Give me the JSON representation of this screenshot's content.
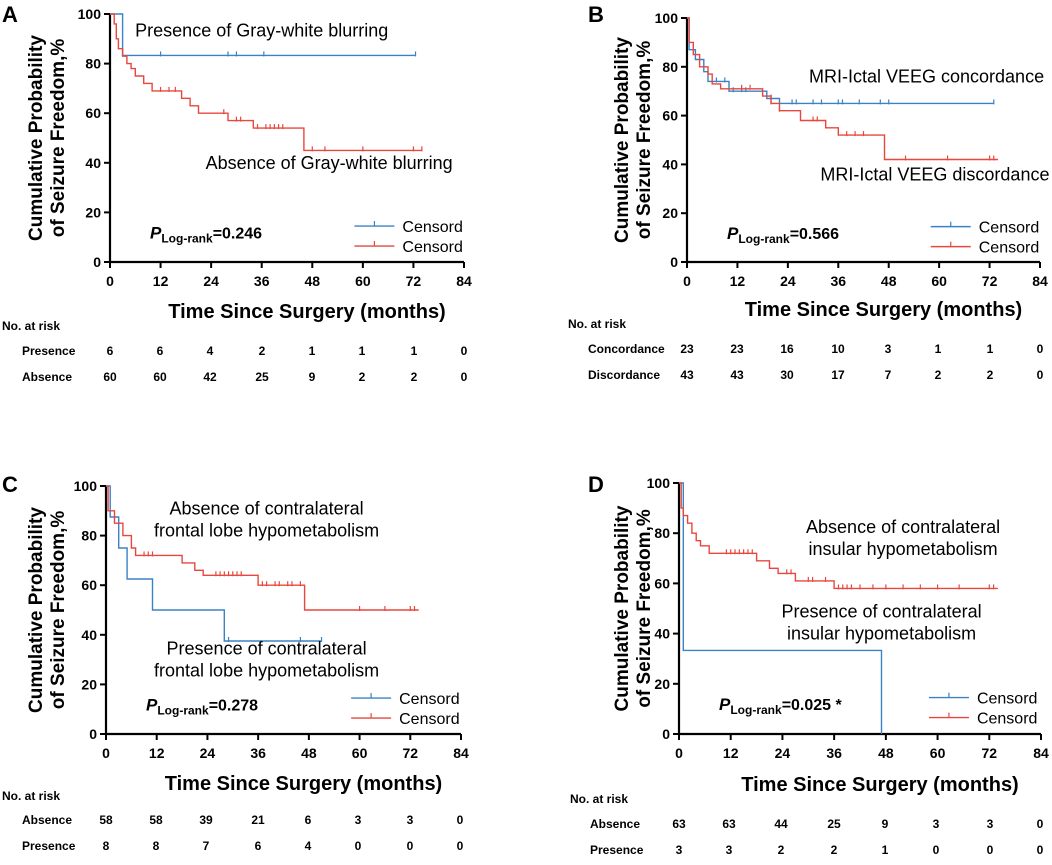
{
  "colors": {
    "blue": "#3b82c4",
    "red": "#e8473f",
    "axis": "#000000"
  },
  "chart_data": [
    {
      "panel_label": "A",
      "type": "line",
      "ylabel_lines": [
        "Cumulative Probability",
        "of Seizure Freedom,%"
      ],
      "xlabel": "Time Since Surgery (months)",
      "x_ticks": [
        0,
        12,
        24,
        36,
        48,
        60,
        72,
        84
      ],
      "y_ticks": [
        0,
        20,
        40,
        60,
        80,
        100
      ],
      "xlim": [
        0,
        84
      ],
      "ylim": [
        0,
        100
      ],
      "p_value": {
        "p": "P",
        "sub": "Log-rank",
        "value": "=0.246"
      },
      "legend": [
        "Censord",
        "Censord"
      ],
      "series": [
        {
          "name": "Presence of Gray-white blurring",
          "color": "blue",
          "steps": [
            [
              0,
              100
            ],
            [
              3,
              100
            ],
            [
              3,
              83.3
            ],
            [
              72.5,
              83.3
            ]
          ],
          "censors": [
            12,
            28,
            30,
            36.5,
            72.5
          ]
        },
        {
          "name": "Absence of Gray-white blurring",
          "color": "red",
          "steps": [
            [
              0,
              100
            ],
            [
              1,
              100
            ],
            [
              1,
              96
            ],
            [
              1.5,
              96
            ],
            [
              1.5,
              90
            ],
            [
              2,
              90
            ],
            [
              2,
              86
            ],
            [
              3,
              86
            ],
            [
              3,
              83
            ],
            [
              4,
              83
            ],
            [
              4,
              80
            ],
            [
              5,
              80
            ],
            [
              5,
              78
            ],
            [
              6,
              78
            ],
            [
              6,
              75
            ],
            [
              8,
              75
            ],
            [
              8,
              72
            ],
            [
              10,
              72
            ],
            [
              10,
              69
            ],
            [
              17,
              69
            ],
            [
              17,
              66
            ],
            [
              19,
              66
            ],
            [
              19,
              63
            ],
            [
              21,
              63
            ],
            [
              21,
              60
            ],
            [
              28,
              60
            ],
            [
              28,
              57
            ],
            [
              34,
              57
            ],
            [
              34,
              54
            ],
            [
              46,
              54
            ],
            [
              46,
              45
            ],
            [
              74,
              45
            ]
          ],
          "censors": [
            12,
            14,
            15.5,
            27,
            30,
            31,
            35,
            37,
            38,
            39,
            40,
            41,
            48,
            51,
            60,
            72,
            74
          ]
        }
      ],
      "annotations": [
        {
          "series": 0,
          "lines": [
            "Presence of Gray-white blurring"
          ],
          "x": 36,
          "y": 91,
          "anchor": "middle"
        },
        {
          "series": 1,
          "lines": [
            "Absence of Gray-white blurring"
          ],
          "x": 52,
          "y": 37.5,
          "anchor": "middle"
        }
      ],
      "risk_table": {
        "title": "No. at risk",
        "rows": [
          {
            "label": "Presence",
            "values": [
              "6",
              "6",
              "4",
              "2",
              "1",
              "1",
              "1",
              "0"
            ]
          },
          {
            "label": "Absence",
            "values": [
              "60",
              "60",
              "42",
              "25",
              "9",
              "2",
              "2",
              "0"
            ]
          }
        ]
      }
    },
    {
      "panel_label": "B",
      "type": "line",
      "ylabel_lines": [
        "Cumulative Probability",
        "of Seizure Freedom,%"
      ],
      "xlabel": "Time Since Surgery (months)",
      "x_ticks": [
        0,
        12,
        24,
        36,
        48,
        60,
        72,
        84
      ],
      "y_ticks": [
        0,
        20,
        40,
        60,
        80,
        100
      ],
      "xlim": [
        0,
        84
      ],
      "ylim": [
        0,
        100
      ],
      "p_value": {
        "p": "P",
        "sub": "Log-rank",
        "value": "=0.566"
      },
      "legend": [
        "Censord",
        "Censord"
      ],
      "series": [
        {
          "name": "MRI-Ictal VEEG concordance",
          "color": "blue",
          "steps": [
            [
              0,
              100
            ],
            [
              0.5,
              100
            ],
            [
              0.5,
              87
            ],
            [
              2,
              87
            ],
            [
              2,
              83
            ],
            [
              4,
              83
            ],
            [
              4,
              78
            ],
            [
              5,
              78
            ],
            [
              5,
              74
            ],
            [
              10,
              74
            ],
            [
              10,
              70
            ],
            [
              19,
              70
            ],
            [
              19,
              67
            ],
            [
              22,
              67
            ],
            [
              22,
              65
            ],
            [
              73,
              65
            ]
          ],
          "censors": [
            7,
            9,
            11,
            13,
            14,
            20,
            25,
            26,
            30,
            32,
            36,
            37,
            41,
            46,
            48,
            73
          ]
        },
        {
          "name": "MRI-Ictal VEEG discordance",
          "color": "red",
          "steps": [
            [
              0,
              100
            ],
            [
              0.5,
              100
            ],
            [
              0.5,
              90
            ],
            [
              1.5,
              90
            ],
            [
              1.5,
              85
            ],
            [
              3,
              85
            ],
            [
              3,
              80
            ],
            [
              5,
              80
            ],
            [
              5,
              77
            ],
            [
              6,
              77
            ],
            [
              6,
              73
            ],
            [
              8,
              73
            ],
            [
              8,
              71
            ],
            [
              18,
              71
            ],
            [
              18,
              68
            ],
            [
              20,
              68
            ],
            [
              20,
              65
            ],
            [
              22,
              65
            ],
            [
              22,
              62
            ],
            [
              27,
              62
            ],
            [
              27,
              58
            ],
            [
              33,
              58
            ],
            [
              33,
              55
            ],
            [
              36,
              55
            ],
            [
              36,
              52
            ],
            [
              47,
              52
            ],
            [
              47,
              42
            ],
            [
              74,
              42
            ]
          ],
          "censors": [
            13,
            15,
            20,
            22,
            30,
            31,
            38,
            40,
            42,
            52,
            62,
            72,
            73
          ]
        }
      ],
      "annotations": [
        {
          "series": 0,
          "lines": [
            "MRI-Ictal VEEG concordance"
          ],
          "x": 57,
          "y": 73.5,
          "anchor": "middle"
        },
        {
          "series": 1,
          "lines": [
            "MRI-Ictal VEEG discordance"
          ],
          "x": 59,
          "y": 33.5,
          "anchor": "middle"
        }
      ],
      "risk_table": {
        "title": "No. at risk",
        "rows": [
          {
            "label": "Concordance",
            "values": [
              "23",
              "23",
              "16",
              "10",
              "3",
              "1",
              "1",
              "0"
            ]
          },
          {
            "label": "Discordance",
            "values": [
              "43",
              "43",
              "30",
              "17",
              "7",
              "2",
              "2",
              "0"
            ]
          }
        ]
      }
    },
    {
      "panel_label": "C",
      "type": "line",
      "ylabel_lines": [
        "Cumulative Probability",
        "of Seizure Freedom,%"
      ],
      "xlabel": "Time Since Surgery (months)",
      "x_ticks": [
        0,
        12,
        24,
        36,
        48,
        60,
        72,
        84
      ],
      "y_ticks": [
        0,
        20,
        40,
        60,
        80,
        100
      ],
      "xlim": [
        0,
        84
      ],
      "ylim": [
        0,
        100
      ],
      "p_value": {
        "p": "P",
        "sub": "Log-rank",
        "value": "=0.278"
      },
      "legend": [
        "Censord",
        "Censord"
      ],
      "series": [
        {
          "name": "Presence of contralateral frontal lobe hypometabolism",
          "color": "blue",
          "steps": [
            [
              0,
              100
            ],
            [
              1,
              100
            ],
            [
              1,
              87.5
            ],
            [
              3,
              87.5
            ],
            [
              3,
              75
            ],
            [
              5,
              75
            ],
            [
              5,
              62.5
            ],
            [
              11,
              62.5
            ],
            [
              11,
              50
            ],
            [
              28,
              50
            ],
            [
              28,
              37.5
            ],
            [
              51,
              37.5
            ]
          ],
          "censors": [
            29,
            46,
            51
          ]
        },
        {
          "name": "Absence of contralateral frontal lobe hypometabolism",
          "color": "red",
          "steps": [
            [
              0,
              100
            ],
            [
              0.5,
              100
            ],
            [
              0.5,
              90
            ],
            [
              2,
              90
            ],
            [
              2,
              85
            ],
            [
              4,
              85
            ],
            [
              4,
              80
            ],
            [
              6,
              80
            ],
            [
              6,
              75
            ],
            [
              7,
              75
            ],
            [
              7,
              72
            ],
            [
              18,
              72
            ],
            [
              18,
              69
            ],
            [
              21,
              69
            ],
            [
              21,
              66
            ],
            [
              23,
              66
            ],
            [
              23,
              64
            ],
            [
              36,
              64
            ],
            [
              36,
              60
            ],
            [
              47,
              60
            ],
            [
              47,
              50
            ],
            [
              74,
              50
            ]
          ],
          "censors": [
            9,
            10,
            11,
            26,
            27,
            28,
            29,
            30,
            31,
            32,
            37,
            38,
            40,
            41,
            43,
            44,
            46,
            60,
            66,
            72,
            73
          ]
        }
      ],
      "annotations": [
        {
          "series": 1,
          "lines": [
            "Absence of contralateral",
            "frontal lobe hypometabolism"
          ],
          "x": 38,
          "y": 88.5,
          "anchor": "middle"
        },
        {
          "series": 0,
          "lines": [
            "Presence of contralateral",
            "frontal lobe hypometabolism"
          ],
          "x": 38,
          "y": 32,
          "anchor": "middle"
        }
      ],
      "risk_table": {
        "title": "No. at risk",
        "rows": [
          {
            "label": "Absence",
            "values": [
              "58",
              "58",
              "39",
              "21",
              "6",
              "3",
              "3",
              "0"
            ]
          },
          {
            "label": "Presence",
            "values": [
              "8",
              "8",
              "7",
              "6",
              "4",
              "0",
              "0",
              "0"
            ]
          }
        ]
      }
    },
    {
      "panel_label": "D",
      "type": "line",
      "ylabel_lines": [
        "Cumulative Probability",
        "of Seizure Freedom,%"
      ],
      "xlabel": "Time Since Surgery (months)",
      "x_ticks": [
        0,
        12,
        24,
        36,
        48,
        60,
        72,
        84
      ],
      "y_ticks": [
        0,
        20,
        40,
        60,
        80,
        100
      ],
      "xlim": [
        0,
        84
      ],
      "ylim": [
        0,
        100
      ],
      "p_value": {
        "p": "P",
        "sub": "Log-rank",
        "value": "=0.025 *"
      },
      "legend": [
        "Censord",
        "Censord"
      ],
      "series": [
        {
          "name": "Presence of contralateral insular hypometabolism",
          "color": "blue",
          "steps": [
            [
              0,
              100
            ],
            [
              1,
              100
            ],
            [
              1,
              33.3
            ],
            [
              47,
              33.3
            ],
            [
              47,
              0
            ]
          ],
          "censors": []
        },
        {
          "name": "Absence of contralateral insular hypometabolism",
          "color": "red",
          "steps": [
            [
              0,
              100
            ],
            [
              0.5,
              100
            ],
            [
              0.5,
              90
            ],
            [
              1,
              90
            ],
            [
              1,
              87
            ],
            [
              2,
              87
            ],
            [
              2,
              84
            ],
            [
              3,
              84
            ],
            [
              3,
              80
            ],
            [
              4,
              80
            ],
            [
              4,
              77
            ],
            [
              5,
              77
            ],
            [
              5,
              75
            ],
            [
              7,
              75
            ],
            [
              7,
              72
            ],
            [
              18,
              72
            ],
            [
              18,
              69
            ],
            [
              21,
              69
            ],
            [
              21,
              66
            ],
            [
              23,
              66
            ],
            [
              23,
              64
            ],
            [
              27,
              64
            ],
            [
              27,
              61
            ],
            [
              36,
              61
            ],
            [
              36,
              58
            ],
            [
              74,
              58
            ]
          ],
          "censors": [
            11,
            12,
            13,
            14,
            15,
            16,
            17,
            25,
            26,
            30,
            31,
            34,
            37,
            38,
            39,
            40,
            42,
            45,
            48,
            52,
            56,
            60,
            65,
            72,
            73
          ]
        }
      ],
      "annotations": [
        {
          "series": 1,
          "lines": [
            "Absence of contralateral",
            "insular hypometabolism"
          ],
          "x": 52,
          "y": 80,
          "anchor": "middle"
        },
        {
          "series": 0,
          "lines": [
            "Presence of contralateral",
            "insular hypometabolism"
          ],
          "x": 47,
          "y": 46.5,
          "anchor": "middle"
        }
      ],
      "risk_table": {
        "title": "No. at risk",
        "rows": [
          {
            "label": "Absence",
            "values": [
              "63",
              "63",
              "44",
              "25",
              "9",
              "3",
              "3",
              "0"
            ]
          },
          {
            "label": "Presence",
            "values": [
              "3",
              "3",
              "2",
              "2",
              "1",
              "0",
              "0",
              "0"
            ]
          }
        ]
      }
    }
  ]
}
